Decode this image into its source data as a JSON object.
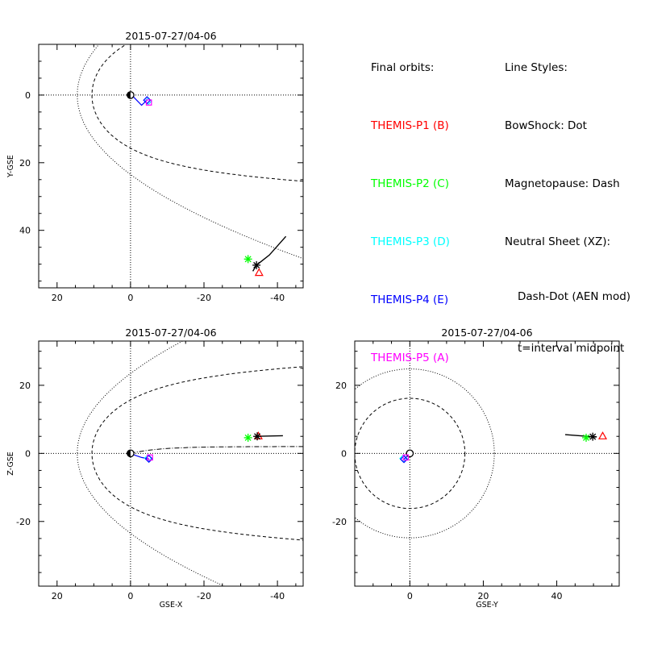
{
  "legend": {
    "title": "Final orbits:",
    "probes": [
      {
        "label": "THEMIS-P1 (B)",
        "color": "#ff0000"
      },
      {
        "label": "THEMIS-P2 (C)",
        "color": "#00ff00"
      },
      {
        "label": "THEMIS-P3 (D)",
        "color": "#00ffff"
      },
      {
        "label": "THEMIS-P4 (E)",
        "color": "#0000ff"
      },
      {
        "label": "THEMIS-P5 (A)",
        "color": "#ff00ff"
      }
    ]
  },
  "line_styles": {
    "title": "Line Styles:",
    "bowshock": "BowShock: Dot",
    "magnetopause": "Magnetopause: Dash",
    "neutral_sheet": "Neutral Sheet (XZ):",
    "neutral_sheet_style": "Dash-Dot (AEN mod)",
    "note": "t=interval midpoint"
  },
  "chart_data": [
    {
      "type": "scatter",
      "title": "2015-07-27/04-06",
      "xlabel": "",
      "ylabel": "Y-GSE",
      "xlim": [
        25,
        -47
      ],
      "ylim": [
        -15,
        57
      ],
      "xticks": [
        20,
        0,
        -20,
        -40
      ],
      "xtick_labels": [
        "20",
        "0",
        "-20",
        "-40"
      ],
      "yticks": [
        0,
        20,
        40
      ],
      "ytick_labels": [
        "0",
        "20",
        "40"
      ],
      "y_inverted": true,
      "grid": false,
      "probes_inner": [
        {
          "probe": "P3",
          "x": -4.8,
          "y": 1.8,
          "marker": "diamond",
          "color": "#00ffff"
        },
        {
          "probe": "P4",
          "x": -4.5,
          "y": 1.5,
          "marker": "diamond",
          "color": "#0000ff"
        },
        {
          "probe": "P5",
          "x": -5.0,
          "y": 2.2,
          "marker": "square",
          "color": "#ff00ff"
        }
      ],
      "probes_outer": [
        {
          "probe": "P1",
          "x": -35.0,
          "y": 52.5,
          "marker": "triangle",
          "color": "#ff0000"
        },
        {
          "probe": "P2",
          "x": -32.0,
          "y": 48.5,
          "marker": "asterisk",
          "color": "#00ff00"
        },
        {
          "probe": "orbit",
          "x": -34.3,
          "y": 50.3,
          "marker": "asterisk",
          "color": "#000000"
        }
      ]
    },
    {
      "type": "scatter",
      "title": "2015-07-27/04-06",
      "xlabel": "GSE-X",
      "ylabel": "Z-GSE",
      "xlim": [
        25,
        -47
      ],
      "ylim": [
        -39,
        33
      ],
      "xticks": [
        20,
        0,
        -20,
        -40
      ],
      "xtick_labels": [
        "20",
        "0",
        "-20",
        "-40"
      ],
      "yticks": [
        20,
        0,
        -20
      ],
      "ytick_labels": [
        "20",
        "0",
        "-20"
      ],
      "grid": false,
      "probes_inner": [
        {
          "probe": "P3",
          "x": -4.8,
          "y": -1.4,
          "marker": "diamond",
          "color": "#00ffff"
        },
        {
          "probe": "P4",
          "x": -5.0,
          "y": -1.6,
          "marker": "diamond",
          "color": "#0000ff"
        },
        {
          "probe": "P5",
          "x": -5.3,
          "y": -1.2,
          "marker": "square",
          "color": "#ff00ff"
        }
      ],
      "probes_outer": [
        {
          "probe": "P1",
          "x": -34.8,
          "y": 5.1,
          "marker": "triangle",
          "color": "#ff0000"
        },
        {
          "probe": "P2",
          "x": -32.0,
          "y": 4.6,
          "marker": "asterisk",
          "color": "#00ff00"
        },
        {
          "probe": "orbit",
          "x": -34.5,
          "y": 5.0,
          "marker": "asterisk",
          "color": "#000000"
        }
      ]
    },
    {
      "type": "scatter",
      "title": "2015-07-27/04-06",
      "xlabel": "GSE-Y",
      "ylabel": "",
      "xlim": [
        -15,
        57
      ],
      "ylim": [
        -39,
        33
      ],
      "xticks": [
        0,
        20,
        40
      ],
      "xtick_labels": [
        "0",
        "20",
        "40"
      ],
      "yticks": [
        20,
        0,
        -20
      ],
      "ytick_labels": [
        "20",
        "0",
        "-20"
      ],
      "grid": false,
      "probes_inner": [
        {
          "probe": "P3",
          "x": -1.8,
          "y": -1.5,
          "marker": "diamond",
          "color": "#00ffff"
        },
        {
          "probe": "P4",
          "x": -1.6,
          "y": -1.7,
          "marker": "diamond",
          "color": "#0000ff"
        },
        {
          "probe": "P5",
          "x": -1.1,
          "y": -1.2,
          "marker": "square",
          "color": "#ff00ff"
        }
      ],
      "probes_outer": [
        {
          "probe": "P1",
          "x": 52.5,
          "y": 5.1,
          "marker": "triangle",
          "color": "#ff0000"
        },
        {
          "probe": "P2",
          "x": 48.0,
          "y": 4.6,
          "marker": "asterisk",
          "color": "#00ff00"
        },
        {
          "probe": "orbit",
          "x": 49.8,
          "y": 4.9,
          "marker": "asterisk",
          "color": "#000000"
        }
      ]
    }
  ]
}
